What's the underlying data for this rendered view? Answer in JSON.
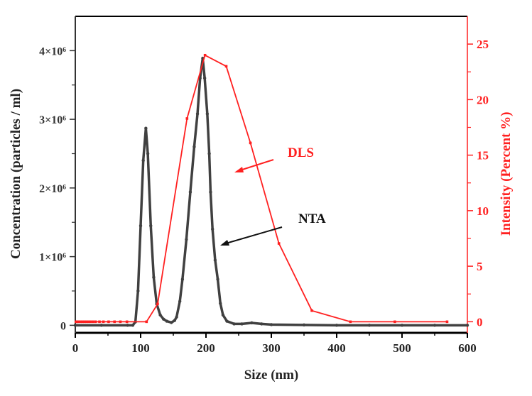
{
  "chart_data": {
    "type": "line",
    "title": "",
    "xlabel": "Size (nm)",
    "ylabel_left": "Concentration (particles / ml)",
    "ylabel_right": "Intensity (Percent %)",
    "xlim": [
      0,
      600
    ],
    "ylim_left": [
      -110000,
      4500000
    ],
    "ylim_right": [
      -1,
      27.5
    ],
    "grid": false,
    "x_ticks": [
      0,
      100,
      200,
      300,
      400,
      500,
      600
    ],
    "x_tick_labels": [
      "0",
      "100",
      "200",
      "300",
      "400",
      "500",
      "600"
    ],
    "y_left_ticks": [
      0,
      1000000,
      2000000,
      3000000,
      4000000
    ],
    "y_left_tick_labels": [
      "0",
      "1×10⁶",
      "2×10⁶",
      "3×10⁶",
      "4×10⁶"
    ],
    "y_right_ticks": [
      0,
      5,
      10,
      15,
      20,
      25
    ],
    "y_right_tick_labels": [
      "0",
      "5",
      "10",
      "15",
      "20",
      "25"
    ],
    "colors": {
      "nta": "#404040",
      "dls": "#ff2020",
      "axis": "#000000"
    },
    "series": [
      {
        "name": "NTA",
        "axis": "left",
        "x": [
          0,
          40,
          80,
          88,
          92,
          96,
          100,
          104,
          108,
          111,
          115.5,
          120,
          124.6,
          130,
          135,
          140,
          147,
          152,
          155,
          160,
          164,
          170,
          176,
          182,
          187,
          191,
          195,
          198,
          202,
          205,
          207,
          210,
          214,
          218,
          222,
          226,
          232,
          243,
          255,
          270,
          285,
          300,
          350,
          400,
          450,
          500,
          550,
          600
        ],
        "y": [
          0,
          0,
          0,
          0,
          50000,
          500000,
          1450000,
          2400000,
          2870000,
          2500000,
          1450000,
          700000,
          310000,
          150000,
          90000,
          60000,
          40000,
          70000,
          120000,
          350000,
          670000,
          1250000,
          1940000,
          2600000,
          3080000,
          3600000,
          3890000,
          3600000,
          3080000,
          2500000,
          1940000,
          1400000,
          950000,
          670000,
          320000,
          150000,
          60000,
          20000,
          20000,
          35000,
          20000,
          10000,
          5000,
          0,
          0,
          0,
          0,
          0
        ]
      },
      {
        "name": "DLS",
        "axis": "right",
        "x": [
          1,
          3,
          5,
          8,
          11,
          14,
          17,
          20,
          23,
          27,
          31,
          37,
          43,
          51,
          60,
          69,
          79,
          109,
          126,
          171,
          198.5,
          231,
          268,
          311.6,
          362,
          421,
          489,
          569
        ],
        "y": [
          0,
          0,
          0,
          0,
          0,
          0,
          0,
          0,
          0,
          0,
          0,
          0,
          0,
          0,
          0,
          0,
          0,
          0,
          1.6,
          18.3,
          24.0,
          23.0,
          16.1,
          7.05,
          1.0,
          0,
          0,
          0
        ]
      }
    ],
    "annotations": [
      {
        "text": "DLS",
        "color": "#ff2020"
      },
      {
        "text": "NTA",
        "color": "#000000"
      }
    ]
  }
}
